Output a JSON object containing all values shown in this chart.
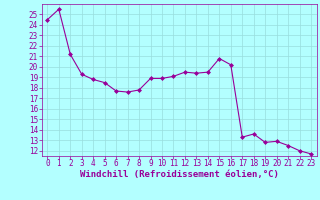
{
  "x": [
    0,
    1,
    2,
    3,
    4,
    5,
    6,
    7,
    8,
    9,
    10,
    11,
    12,
    13,
    14,
    15,
    16,
    17,
    18,
    19,
    20,
    21,
    22,
    23
  ],
  "y": [
    24.5,
    25.5,
    21.2,
    19.3,
    18.8,
    18.5,
    17.7,
    17.6,
    17.8,
    18.9,
    18.9,
    19.1,
    19.5,
    19.4,
    19.5,
    20.8,
    20.2,
    13.3,
    13.6,
    12.8,
    12.9,
    12.5,
    12.0,
    11.7
  ],
  "line_color": "#990099",
  "marker": "D",
  "marker_size": 2.0,
  "bg_color": "#b3ffff",
  "grid_color": "#99dddd",
  "xlabel": "Windchill (Refroidissement éolien,°C)",
  "xlabel_color": "#990099",
  "xlabel_fontsize": 6.5,
  "tick_color": "#990099",
  "tick_fontsize": 5.5,
  "ylim": [
    11.5,
    26.0
  ],
  "xlim": [
    -0.5,
    23.5
  ],
  "yticks": [
    12,
    13,
    14,
    15,
    16,
    17,
    18,
    19,
    20,
    21,
    22,
    23,
    24,
    25
  ],
  "xticks": [
    0,
    1,
    2,
    3,
    4,
    5,
    6,
    7,
    8,
    9,
    10,
    11,
    12,
    13,
    14,
    15,
    16,
    17,
    18,
    19,
    20,
    21,
    22,
    23
  ],
  "spine_color": "#990099",
  "bottom_bar_color": "#7700aa"
}
